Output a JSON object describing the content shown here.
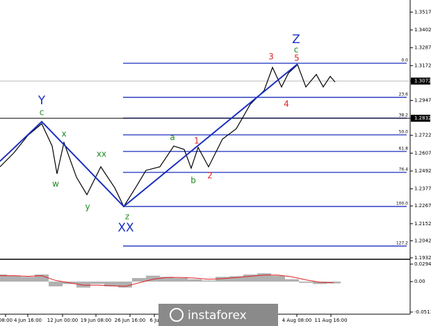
{
  "chart_data": {
    "type": "line",
    "x": [
      0,
      20,
      40,
      60,
      75,
      82,
      92,
      110,
      125,
      145,
      165,
      178,
      195,
      210,
      230,
      250,
      265,
      275,
      285,
      300,
      320,
      340,
      360,
      380,
      392,
      405,
      415,
      428,
      440,
      455,
      465,
      475,
      482
    ],
    "series": [
      {
        "color": "#000000",
        "values": [
          1.2519,
          1.2609,
          1.2721,
          1.2797,
          1.2653,
          1.2474,
          1.2676,
          1.2452,
          1.2339,
          1.2519,
          1.2384,
          1.2263,
          1.2384,
          1.2496,
          1.2519,
          1.2653,
          1.2631,
          1.251,
          1.2644,
          1.2519,
          1.2698,
          1.2765,
          1.2922,
          1.3012,
          1.316,
          1.3034,
          1.3124,
          1.3178,
          1.3034,
          1.3115,
          1.3034,
          1.3102,
          1.3066
        ]
      }
    ],
    "xlim": [
      0,
      590
    ],
    "ylim": [
      1.1927,
      1.3595
    ],
    "yticks": [
      1.3517,
      1.3402,
      1.3287,
      1.3172,
      {
        "value": 1.3072,
        "label": "1.3072"
      },
      1.2947,
      {
        "value": 1.2832,
        "label": "1.2832"
      },
      1.2722,
      1.2607,
      1.2492,
      1.2377,
      1.2267,
      1.2152,
      1.2042,
      1.1932
    ],
    "highlighted_ticks": [
      4,
      6
    ],
    "xticks": [
      {
        "value": 8,
        "label": "08:00"
      },
      {
        "value": 40,
        "label": "4 Jun 16:00"
      },
      {
        "value": 90,
        "label": "12 Jun 00:00"
      },
      {
        "value": 138,
        "label": "19 Jun 08:00"
      },
      {
        "value": 187,
        "label": "26 Jun 16:00"
      },
      {
        "value": 222,
        "label": "6 Ju"
      },
      {
        "value": 427,
        "label": "4 Aug 08:00"
      },
      {
        "value": 476,
        "label": "11 Aug 16:00"
      }
    ],
    "fib_levels": [
      {
        "value": 1.3187,
        "label": "0.0"
      },
      {
        "value": 1.2967,
        "label": "23.6"
      },
      {
        "value": 1.2833,
        "label": "38.2"
      },
      {
        "value": 1.2725,
        "label": "50.0"
      },
      {
        "value": 1.2618,
        "label": "61.8"
      },
      {
        "value": 1.2483,
        "label": "76.4"
      },
      {
        "value": 1.2263,
        "label": "100.0"
      },
      {
        "value": 1.2008,
        "label": "127.2"
      }
    ],
    "trend_line": {
      "x": [
        0,
        60,
        178,
        428
      ],
      "values": [
        1.2555,
        1.281,
        1.2263,
        1.3182
      ],
      "color": "#1a2fbf"
    },
    "waves": [
      {
        "label": "Y",
        "x": 60,
        "value": 1.2945,
        "color": "#1a2fbf",
        "size": "big"
      },
      {
        "label": "c",
        "x": 60,
        "value": 1.2869,
        "color": "#1e8a1e"
      },
      {
        "label": "x",
        "x": 92,
        "value": 1.273,
        "color": "#1e8a1e"
      },
      {
        "label": "w",
        "x": 80,
        "value": 1.2407,
        "color": "#1e8a1e"
      },
      {
        "label": "xx",
        "x": 146,
        "value": 1.26,
        "color": "#1e8a1e"
      },
      {
        "label": "y",
        "x": 126,
        "value": 1.2259,
        "color": "#1e8a1e"
      },
      {
        "label": "z",
        "x": 183,
        "value": 1.2196,
        "color": "#1e8a1e"
      },
      {
        "label": "XX",
        "x": 181,
        "value": 1.2124,
        "color": "#1a2fbf",
        "size": "big"
      },
      {
        "label": "a",
        "x": 248,
        "value": 1.2707,
        "color": "#1e8a1e"
      },
      {
        "label": "b",
        "x": 278,
        "value": 1.2429,
        "color": "#1e8a1e"
      },
      {
        "label": "1",
        "x": 283,
        "value": 1.2685,
        "color": "#e02020"
      },
      {
        "label": "2",
        "x": 302,
        "value": 1.2461,
        "color": "#e02020"
      },
      {
        "label": "3",
        "x": 390,
        "value": 1.3227,
        "color": "#e02020"
      },
      {
        "label": "4",
        "x": 412,
        "value": 1.2922,
        "color": "#e02020"
      },
      {
        "label": "5",
        "x": 427,
        "value": 1.3218,
        "color": "#e02020"
      },
      {
        "label": "c",
        "x": 426,
        "value": 1.3272,
        "color": "#1e8a1e"
      },
      {
        "label": "Z",
        "x": 426,
        "value": 1.3339,
        "color": "#1a2fbf",
        "size": "big"
      }
    ],
    "oscillator": {
      "x": [
        0,
        20,
        40,
        60,
        80,
        100,
        120,
        140,
        160,
        180,
        200,
        220,
        240,
        260,
        280,
        300,
        320,
        340,
        360,
        380,
        400,
        420,
        440,
        460,
        480
      ],
      "values": [
        0.012,
        0.01,
        0.008,
        0.012,
        -0.008,
        -0.004,
        -0.01,
        -0.004,
        -0.008,
        -0.01,
        0.006,
        0.01,
        0.008,
        0.006,
        0.004,
        0.002,
        0.008,
        0.009,
        0.012,
        0.014,
        0.01,
        0.004,
        -0.002,
        -0.004,
        -0.003
      ],
      "signal": [
        0.01,
        0.01,
        0.009,
        0.01,
        0.002,
        -0.002,
        -0.006,
        -0.006,
        -0.007,
        -0.008,
        -0.002,
        0.004,
        0.007,
        0.007,
        0.006,
        0.004,
        0.005,
        0.007,
        0.009,
        0.011,
        0.011,
        0.008,
        0.003,
        -0.001,
        -0.002
      ],
      "ylim": [
        -0.0549,
        0.0353
      ],
      "yticks": [
        0.02947,
        {
          "value": 0,
          "label": "0.00"
        },
        -0.05133
      ]
    },
    "logo": "instaforex"
  }
}
